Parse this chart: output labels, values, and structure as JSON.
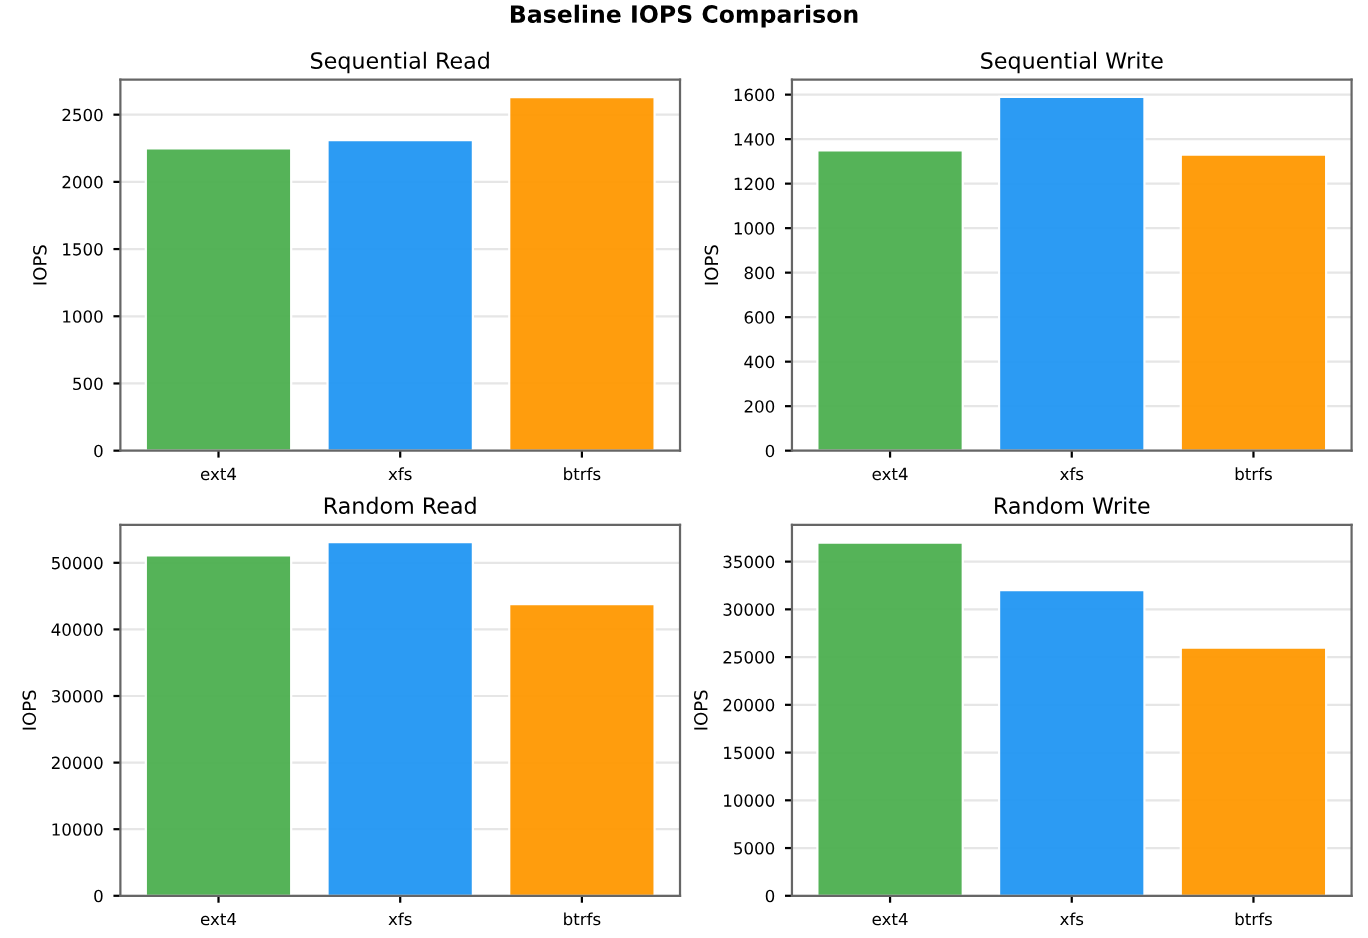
{
  "chart_data": [
    {
      "type": "bar",
      "title": "Sequential Read",
      "ylabel": "IOPS",
      "categories": [
        "ext4",
        "xfs",
        "btrfs"
      ],
      "values": [
        2250,
        2310,
        2630
      ],
      "colors": [
        "#4caf50",
        "#2196f3",
        "#ff9800"
      ],
      "ylim": [
        0,
        2760
      ],
      "yticks": [
        0,
        500,
        1000,
        1500,
        2000,
        2500
      ],
      "grid": "y",
      "annotations": [
        "Baseline IOPS Comparison"
      ]
    },
    {
      "type": "bar",
      "title": "Sequential Write",
      "ylabel": "IOPS",
      "categories": [
        "ext4",
        "xfs",
        "btrfs"
      ],
      "values": [
        1350,
        1590,
        1330
      ],
      "colors": [
        "#4caf50",
        "#2196f3",
        "#ff9800"
      ],
      "ylim": [
        0,
        1667
      ],
      "yticks": [
        0,
        200,
        400,
        600,
        800,
        1000,
        1200,
        1400,
        1600
      ],
      "grid": "y"
    },
    {
      "type": "bar",
      "title": "Random Read",
      "ylabel": "IOPS",
      "categories": [
        "ext4",
        "xfs",
        "btrfs"
      ],
      "values": [
        51100,
        53100,
        43800
      ],
      "colors": [
        "#4caf50",
        "#2196f3",
        "#ff9800"
      ],
      "ylim": [
        0,
        55700
      ],
      "yticks": [
        0,
        10000,
        20000,
        30000,
        40000,
        50000
      ],
      "grid": "y"
    },
    {
      "type": "bar",
      "title": "Random Write",
      "ylabel": "IOPS",
      "categories": [
        "ext4",
        "xfs",
        "btrfs"
      ],
      "values": [
        37000,
        32000,
        26000
      ],
      "colors": [
        "#4caf50",
        "#2196f3",
        "#ff9800"
      ],
      "ylim": [
        0,
        38850
      ],
      "yticks": [
        0,
        5000,
        10000,
        15000,
        20000,
        25000,
        30000,
        35000
      ],
      "grid": "y"
    }
  ]
}
